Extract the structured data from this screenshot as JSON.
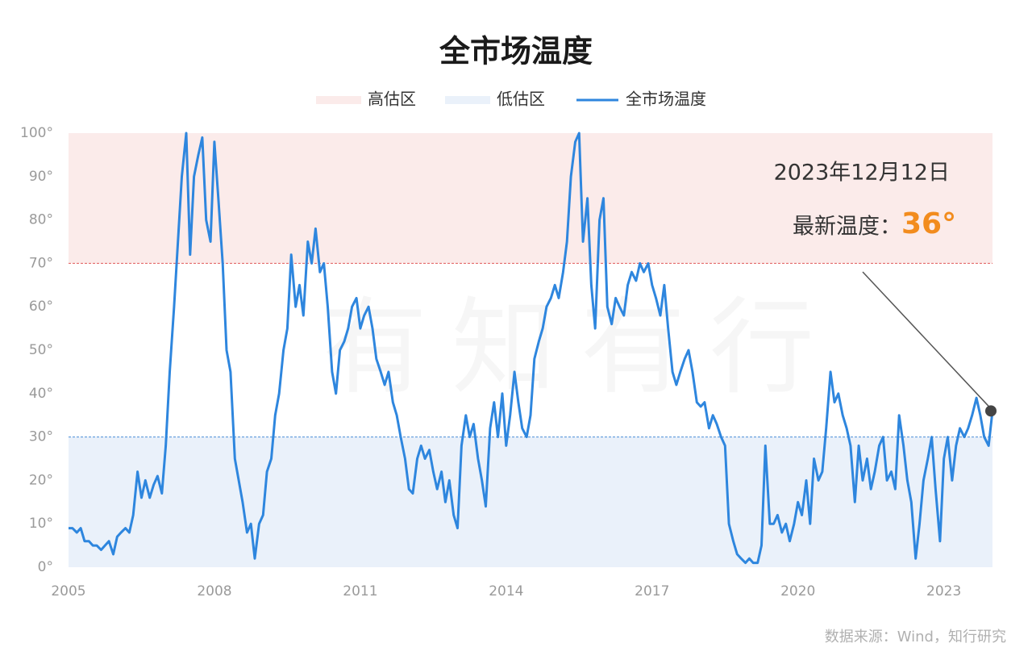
{
  "chart_data": {
    "type": "line",
    "title": "全市场温度",
    "source": "数据来源：Wind，知行研究",
    "watermark": "有知有行",
    "bands": [
      {
        "name": "高估区",
        "from": 70,
        "to": 100,
        "color": "#fbebea",
        "line_color": "#e05a5a"
      },
      {
        "name": "低估区",
        "from": 0,
        "to": 30,
        "color": "#eaf1fa",
        "line_color": "#4a8fd6"
      }
    ],
    "annotation": {
      "date": "2023年12月12日",
      "label": "最新温度：",
      "value_text": "36°"
    },
    "xlim": [
      2005,
      2024
    ],
    "xticks": [
      2005,
      2008,
      2011,
      2014,
      2017,
      2020,
      2023
    ],
    "ylim": [
      0,
      100
    ],
    "yticks": [
      {
        "value": 0,
        "label": "0°"
      },
      {
        "value": 10,
        "label": "10°"
      },
      {
        "value": 20,
        "label": "20°"
      },
      {
        "value": 30,
        "label": "30°"
      },
      {
        "value": 40,
        "label": "40°"
      },
      {
        "value": 50,
        "label": "50°"
      },
      {
        "value": 60,
        "label": "60°"
      },
      {
        "value": 70,
        "label": "70°"
      },
      {
        "value": 80,
        "label": "80°"
      },
      {
        "value": 90,
        "label": "90°"
      },
      {
        "value": 100,
        "label": "100°"
      }
    ],
    "x": [
      2005,
      2005.08,
      2005.17,
      2005.25,
      2005.33,
      2005.42,
      2005.5,
      2005.58,
      2005.67,
      2005.75,
      2005.83,
      2005.92,
      2006,
      2006.08,
      2006.17,
      2006.25,
      2006.33,
      2006.42,
      2006.5,
      2006.58,
      2006.67,
      2006.75,
      2006.83,
      2006.92,
      2007,
      2007.08,
      2007.17,
      2007.25,
      2007.33,
      2007.42,
      2007.5,
      2007.58,
      2007.67,
      2007.75,
      2007.83,
      2007.92,
      2008,
      2008.08,
      2008.17,
      2008.25,
      2008.33,
      2008.42,
      2008.5,
      2008.58,
      2008.67,
      2008.75,
      2008.83,
      2008.92,
      2009,
      2009.08,
      2009.17,
      2009.25,
      2009.33,
      2009.42,
      2009.5,
      2009.58,
      2009.67,
      2009.75,
      2009.83,
      2009.92,
      2010,
      2010.08,
      2010.17,
      2010.25,
      2010.33,
      2010.42,
      2010.5,
      2010.58,
      2010.67,
      2010.75,
      2010.83,
      2010.92,
      2011,
      2011.08,
      2011.17,
      2011.25,
      2011.33,
      2011.42,
      2011.5,
      2011.58,
      2011.67,
      2011.75,
      2011.83,
      2011.92,
      2012,
      2012.08,
      2012.17,
      2012.25,
      2012.33,
      2012.42,
      2012.5,
      2012.58,
      2012.67,
      2012.75,
      2012.83,
      2012.92,
      2013,
      2013.08,
      2013.17,
      2013.25,
      2013.33,
      2013.42,
      2013.5,
      2013.58,
      2013.67,
      2013.75,
      2013.83,
      2013.92,
      2014,
      2014.08,
      2014.17,
      2014.25,
      2014.33,
      2014.42,
      2014.5,
      2014.58,
      2014.67,
      2014.75,
      2014.83,
      2014.92,
      2015,
      2015.08,
      2015.17,
      2015.25,
      2015.33,
      2015.42,
      2015.5,
      2015.58,
      2015.67,
      2015.75,
      2015.83,
      2015.92,
      2016,
      2016.08,
      2016.17,
      2016.25,
      2016.33,
      2016.42,
      2016.5,
      2016.58,
      2016.67,
      2016.75,
      2016.83,
      2016.92,
      2017,
      2017.08,
      2017.17,
      2017.25,
      2017.33,
      2017.42,
      2017.5,
      2017.58,
      2017.67,
      2017.75,
      2017.83,
      2017.92,
      2018,
      2018.08,
      2018.17,
      2018.25,
      2018.33,
      2018.42,
      2018.5,
      2018.58,
      2018.67,
      2018.75,
      2018.83,
      2018.92,
      2019,
      2019.08,
      2019.17,
      2019.25,
      2019.33,
      2019.42,
      2019.5,
      2019.58,
      2019.67,
      2019.75,
      2019.83,
      2019.92,
      2020,
      2020.08,
      2020.17,
      2020.25,
      2020.33,
      2020.42,
      2020.5,
      2020.58,
      2020.67,
      2020.75,
      2020.83,
      2020.92,
      2021,
      2021.08,
      2021.17,
      2021.25,
      2021.33,
      2021.42,
      2021.5,
      2021.58,
      2021.67,
      2021.75,
      2021.83,
      2021.92,
      2022,
      2022.08,
      2022.17,
      2022.25,
      2022.33,
      2022.42,
      2022.5,
      2022.58,
      2022.67,
      2022.75,
      2022.83,
      2022.92,
      2023,
      2023.08,
      2023.17,
      2023.25,
      2023.33,
      2023.42,
      2023.5,
      2023.58,
      2023.67,
      2023.75,
      2023.83,
      2023.92,
      2024
    ],
    "series": [
      {
        "name": "全市场温度",
        "color": "#2e86de",
        "values": [
          9,
          9,
          8,
          9,
          6,
          6,
          5,
          5,
          4,
          5,
          6,
          3,
          7,
          8,
          9,
          8,
          12,
          22,
          16,
          20,
          16,
          19,
          21,
          17,
          28,
          45,
          60,
          75,
          90,
          100,
          72,
          90,
          95,
          99,
          80,
          75,
          98,
          85,
          70,
          50,
          45,
          25,
          20,
          15,
          8,
          10,
          2,
          10,
          12,
          22,
          25,
          35,
          40,
          50,
          55,
          72,
          60,
          65,
          58,
          75,
          70,
          78,
          68,
          70,
          60,
          45,
          40,
          50,
          52,
          55,
          60,
          62,
          55,
          58,
          60,
          55,
          48,
          45,
          42,
          45,
          38,
          35,
          30,
          25,
          18,
          17,
          25,
          28,
          25,
          27,
          22,
          18,
          22,
          15,
          20,
          12,
          9,
          28,
          35,
          30,
          33,
          25,
          20,
          14,
          32,
          38,
          30,
          40,
          28,
          35,
          45,
          38,
          32,
          30,
          35,
          48,
          52,
          55,
          60,
          62,
          65,
          62,
          68,
          75,
          90,
          98,
          100,
          75,
          85,
          65,
          55,
          80,
          85,
          60,
          56,
          62,
          60,
          58,
          65,
          68,
          66,
          70,
          68,
          70,
          65,
          62,
          58,
          65,
          55,
          45,
          42,
          45,
          48,
          50,
          45,
          38,
          37,
          38,
          32,
          35,
          33,
          30,
          28,
          10,
          6,
          3,
          2,
          1,
          2,
          1,
          1,
          5,
          28,
          10,
          10,
          12,
          8,
          10,
          6,
          10,
          15,
          12,
          20,
          10,
          25,
          20,
          22,
          32,
          45,
          38,
          40,
          35,
          32,
          28,
          15,
          28,
          20,
          25,
          18,
          22,
          28,
          30,
          20,
          22,
          18,
          35,
          28,
          20,
          15,
          2,
          10,
          20,
          25,
          30,
          18,
          6,
          25,
          30,
          20,
          28,
          32,
          30,
          32,
          35,
          39,
          35,
          30,
          28,
          36
        ]
      }
    ]
  }
}
